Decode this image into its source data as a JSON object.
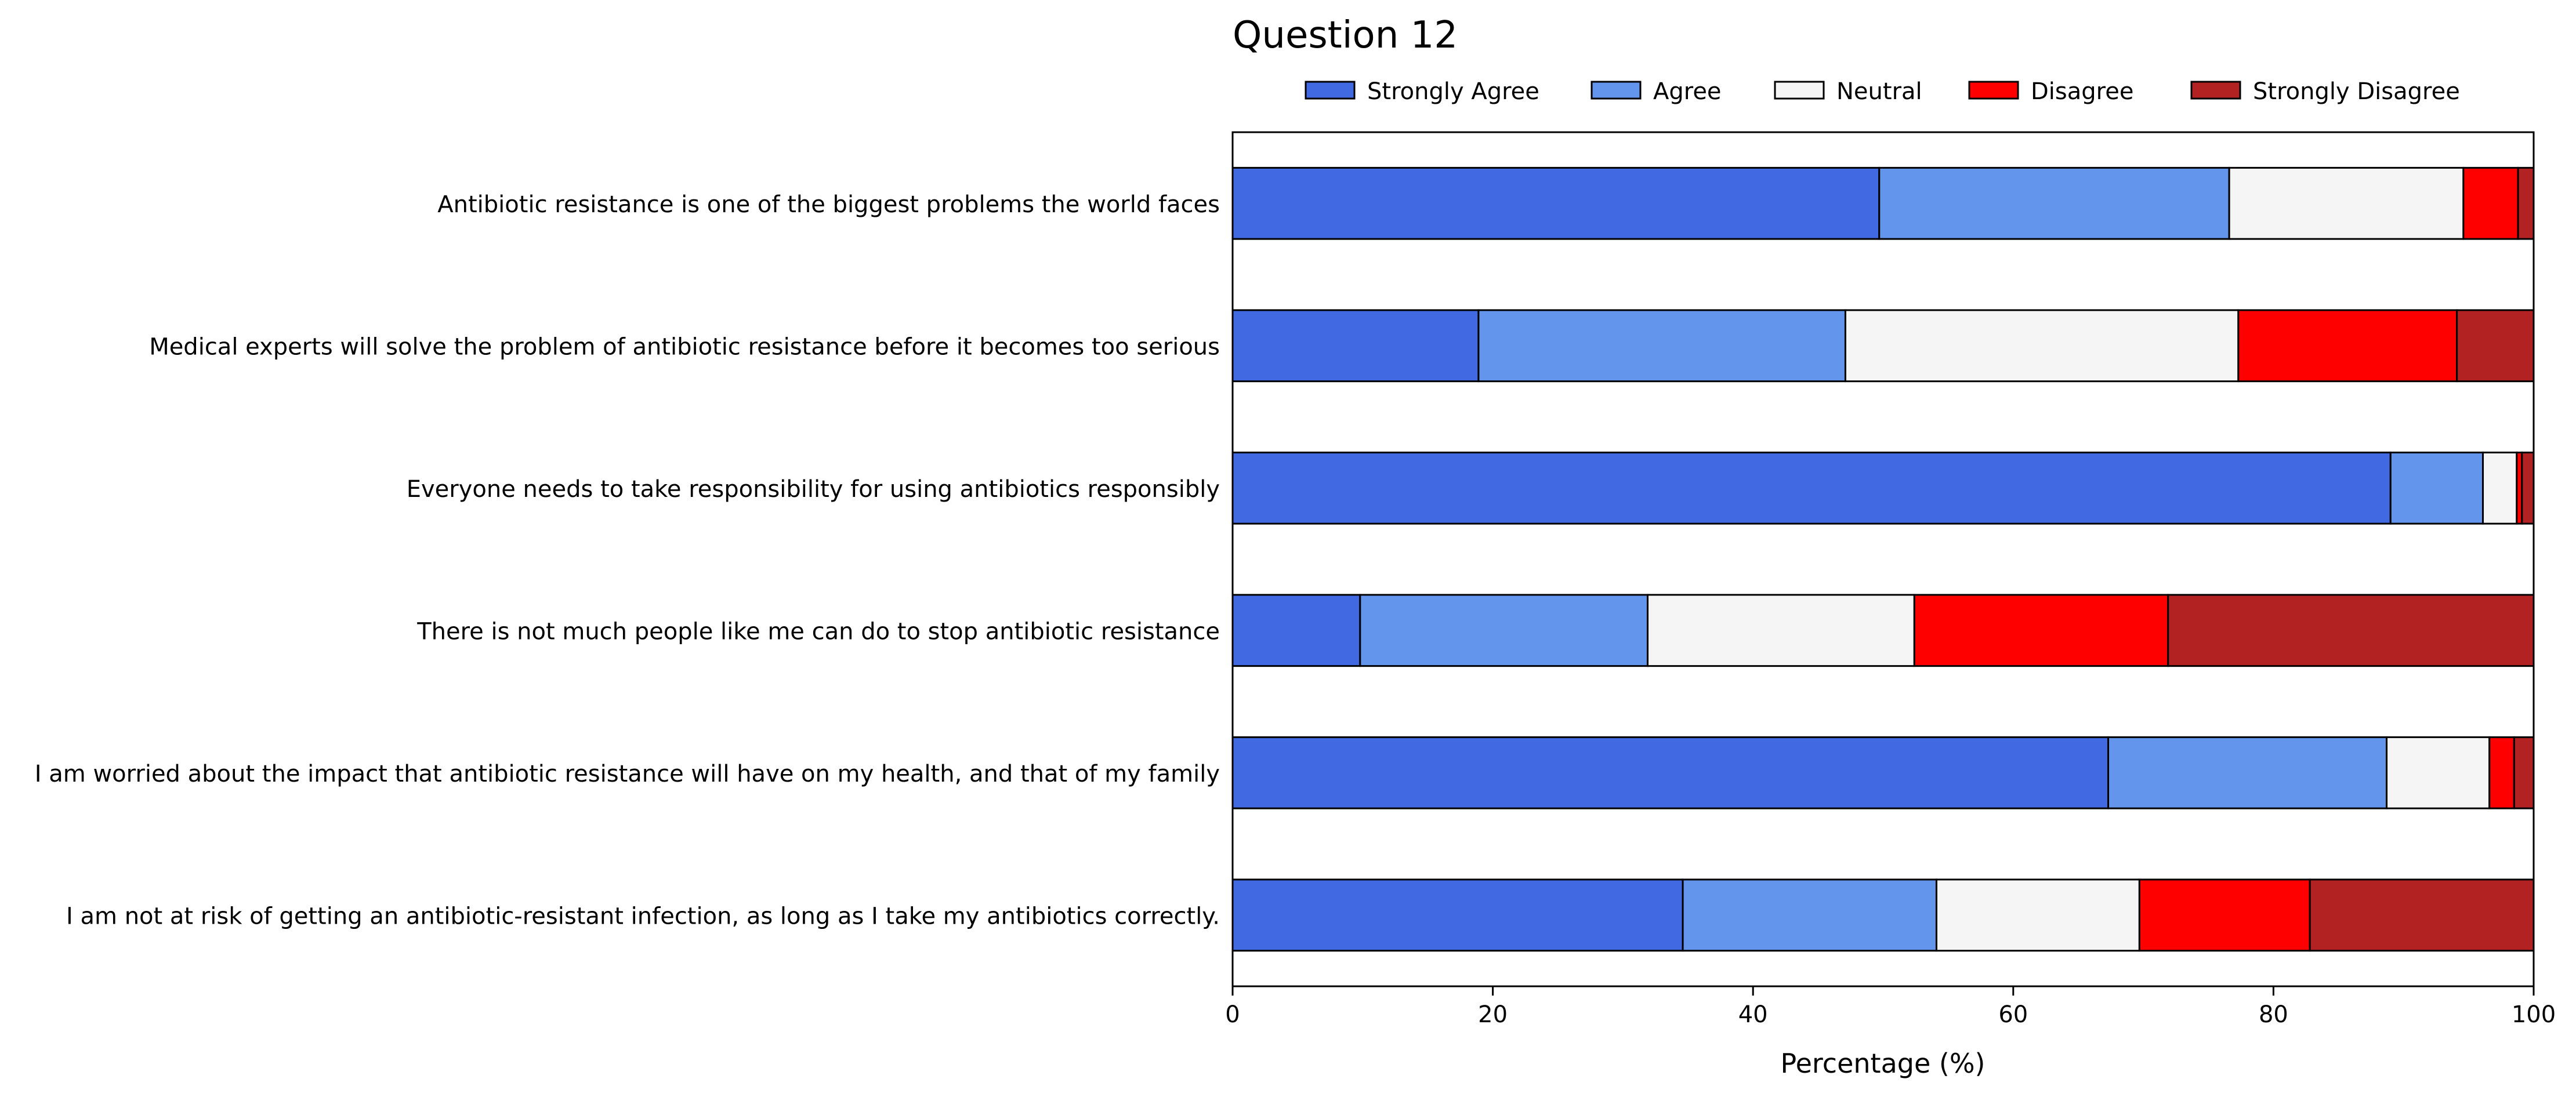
{
  "colors": {
    "Strongly Agree": "#4169E1",
    "Agree": "#6495ED",
    "Neutral": "#F5F5F5",
    "Disagree": "#FF0000",
    "Strongly Disagree": "#B22222"
  },
  "chart_data": {
    "type": "bar",
    "orientation": "horizontal",
    "stacked": true,
    "title": "Question 12",
    "xlabel": "Percentage (%)",
    "ylabel": "",
    "xlim": [
      0,
      100
    ],
    "xticks": [
      0,
      20,
      40,
      60,
      80,
      100
    ],
    "grid": false,
    "legend_position": "top",
    "categories": [
      "Antibiotic resistance is one of the biggest problems the world faces",
      "Medical experts will solve the problem of antibiotic resistance before it becomes too serious",
      "Everyone needs to take responsibility for using antibiotics responsibly",
      "There is not much people like me can do to stop antibiotic resistance",
      "I am worried about the impact that antibiotic resistance will have on my health, and that of my family",
      "I am not at risk of getting an antibiotic-resistant infection, as long as I take my antibiotics correctly."
    ],
    "series": [
      {
        "name": "Strongly Agree",
        "values": [
          49.7,
          18.9,
          89.0,
          9.8,
          67.3,
          34.6
        ]
      },
      {
        "name": "Agree",
        "values": [
          26.9,
          28.2,
          7.1,
          22.1,
          21.4,
          19.5
        ]
      },
      {
        "name": "Neutral",
        "values": [
          18.0,
          30.2,
          2.6,
          20.5,
          7.9,
          15.6
        ]
      },
      {
        "name": "Disagree",
        "values": [
          4.2,
          16.8,
          0.4,
          19.5,
          1.9,
          13.1
        ]
      },
      {
        "name": "Strongly Disagree",
        "values": [
          1.2,
          5.9,
          0.9,
          28.1,
          1.5,
          17.2
        ]
      }
    ]
  }
}
